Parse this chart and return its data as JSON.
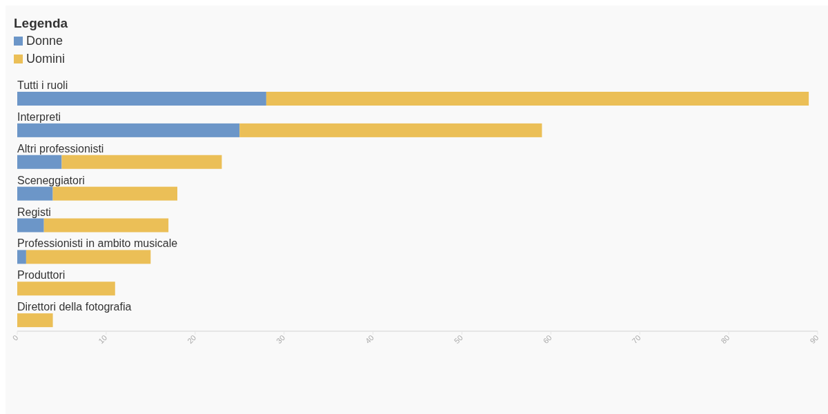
{
  "chart_data": {
    "type": "bar",
    "orientation": "horizontal",
    "stacked": true,
    "legend_title": "Legenda",
    "legend": "top left",
    "categories": [
      "Tutti i ruoli",
      "Interpreti",
      "Altri professionisti",
      "Sceneggiatori",
      "Registi",
      "Professionisti in ambito musicale",
      "Produttori",
      "Direttori della fotografia"
    ],
    "series": [
      {
        "name": "Donne",
        "color": "#6c96c8",
        "values": [
          28,
          25,
          5,
          4,
          3,
          1,
          0,
          0
        ]
      },
      {
        "name": "Uomini",
        "color": "#ebbf57",
        "values": [
          61,
          34,
          18,
          14,
          14,
          14,
          11,
          4
        ]
      }
    ],
    "xlim": [
      0,
      90
    ],
    "xticks": [
      0,
      10,
      20,
      30,
      40,
      50,
      60,
      70,
      80,
      90
    ],
    "grid": false
  }
}
